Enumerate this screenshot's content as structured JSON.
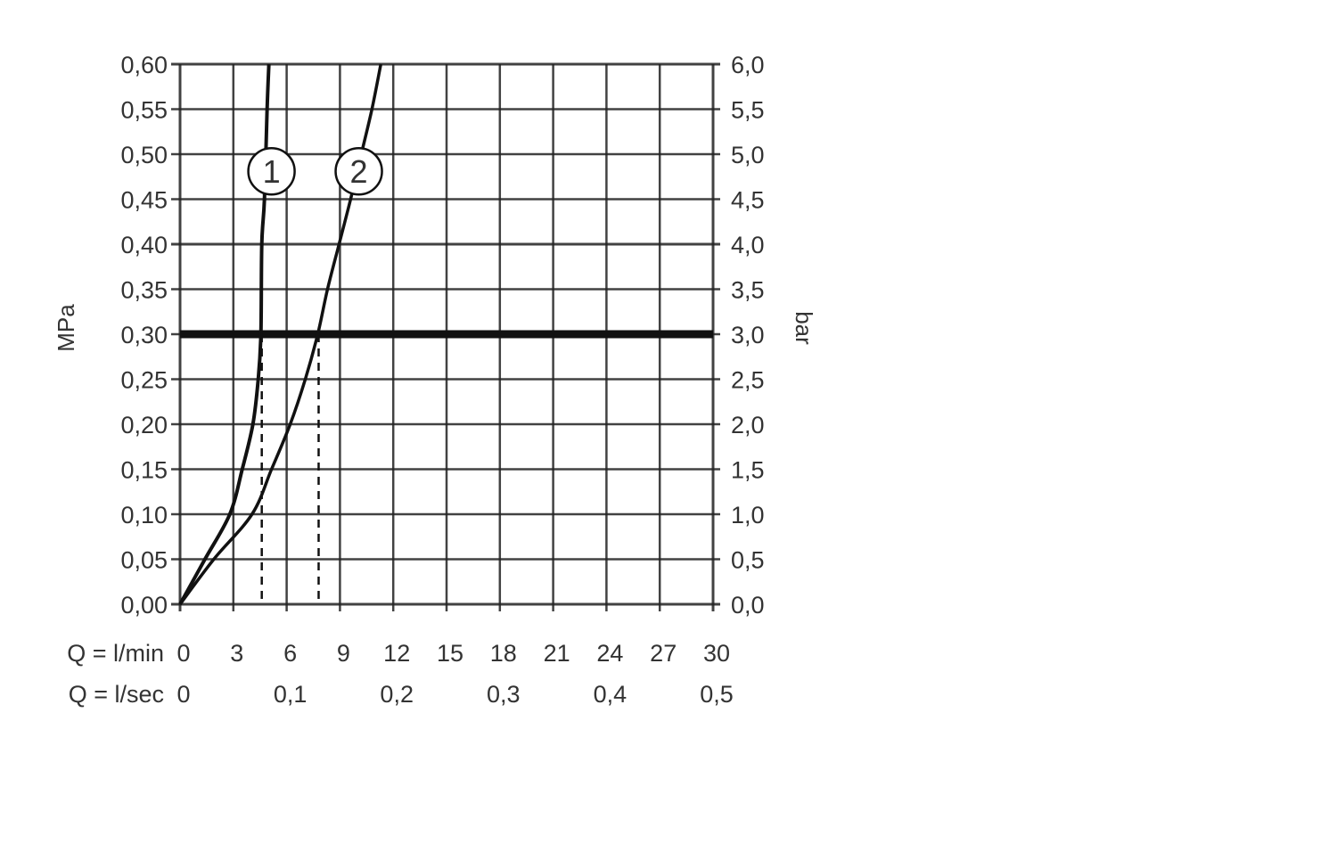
{
  "chart_data": {
    "type": "line",
    "title": "",
    "ylabel_left": "MPa",
    "ylabel_right": "bar",
    "xlabel_rows": [
      {
        "label": "Q = l/min",
        "ticks": [
          "0",
          "3",
          "6",
          "9",
          "12",
          "15",
          "18",
          "21",
          "24",
          "27",
          "30"
        ],
        "values": [
          0,
          3,
          6,
          9,
          12,
          15,
          18,
          21,
          24,
          27,
          30
        ]
      },
      {
        "label": "Q = l/sec",
        "ticks": [
          "0",
          "0,1",
          "0,2",
          "0,3",
          "0,4",
          "0,5"
        ],
        "values": [
          0,
          6,
          12,
          18,
          24,
          30
        ]
      }
    ],
    "xlim": [
      0,
      30
    ],
    "ylim": [
      0,
      0.6
    ],
    "yticks_left": [
      "0,00",
      "0,05",
      "0,10",
      "0,15",
      "0,20",
      "0,25",
      "0,30",
      "0,35",
      "0,40",
      "0,45",
      "0,50",
      "0,55",
      "0,60"
    ],
    "yticks_right": [
      "0,0",
      "0,5",
      "1,0",
      "1,5",
      "2,0",
      "2,5",
      "3,0",
      "3,5",
      "4,0",
      "4,5",
      "5,0",
      "5,5",
      "6,0"
    ],
    "ytick_values": [
      0,
      0.05,
      0.1,
      0.15,
      0.2,
      0.25,
      0.3,
      0.35,
      0.4,
      0.45,
      0.5,
      0.55,
      0.6
    ],
    "grid": true,
    "reference_line_y": 0.3,
    "series": [
      {
        "label": "1",
        "x": [
          0,
          1.4,
          2.8,
          3.5,
          4.1,
          4.4,
          4.55,
          4.6,
          4.75,
          4.9,
          5.0
        ],
        "y": [
          0,
          0.05,
          0.1,
          0.15,
          0.2,
          0.25,
          0.3,
          0.4,
          0.45,
          0.55,
          0.6
        ],
        "marker_at": 0.48
      },
      {
        "label": "2",
        "x": [
          0,
          1.9,
          4.05,
          5.15,
          6.2,
          7.05,
          7.75,
          8.3,
          8.95,
          9.6,
          10.2,
          10.8,
          11.3
        ],
        "y": [
          0,
          0.05,
          0.1,
          0.15,
          0.2,
          0.25,
          0.3,
          0.35,
          0.4,
          0.45,
          0.5,
          0.55,
          0.6
        ],
        "marker_at": 0.48
      }
    ],
    "dashed_drop_lines_x": [
      4.6,
      7.8
    ],
    "colors": {
      "line": "#111111",
      "grid": "#222222",
      "text": "#333333"
    }
  }
}
